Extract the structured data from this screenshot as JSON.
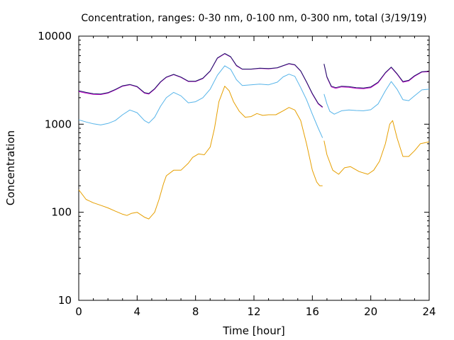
{
  "chart_data": {
    "type": "line",
    "title": "Concentration, ranges: 0-30 nm, 0-100 nm, 0-300 nm, total (3/19/19)",
    "xlabel": "Time [hour]",
    "ylabel": "Concentration",
    "xlim": [
      0,
      24
    ],
    "ylim": [
      10,
      10000
    ],
    "yscale": "log",
    "grid": false,
    "x_ticks": [
      0,
      4,
      8,
      12,
      16,
      20,
      24
    ],
    "x_tick_labels": [
      "0",
      "4",
      "8",
      "12",
      "16",
      "20",
      "24"
    ],
    "y_ticks": [
      10,
      100,
      1000,
      10000
    ],
    "y_tick_labels": [
      "10",
      "100",
      "1000",
      "10000"
    ],
    "series": [
      {
        "color": "#e69f00",
        "segments": [
          [
            [
              0,
              180
            ],
            [
              0.5,
              140
            ],
            [
              1,
              128
            ],
            [
              1.5,
              120
            ],
            [
              2,
              112
            ],
            [
              2.5,
              103
            ],
            [
              3,
              95
            ],
            [
              3.3,
              92
            ],
            [
              3.6,
              97
            ],
            [
              4,
              100
            ],
            [
              4.2,
              95
            ],
            [
              4.5,
              88
            ],
            [
              4.8,
              84
            ],
            [
              5.2,
              100
            ],
            [
              5.5,
              140
            ],
            [
              5.8,
              210
            ],
            [
              6,
              260
            ],
            [
              6.5,
              300
            ],
            [
              7,
              300
            ],
            [
              7.5,
              360
            ],
            [
              7.8,
              420
            ],
            [
              8.2,
              460
            ],
            [
              8.6,
              450
            ],
            [
              9,
              550
            ],
            [
              9.3,
              900
            ],
            [
              9.6,
              1800
            ],
            [
              10,
              2700
            ],
            [
              10.3,
              2400
            ],
            [
              10.6,
              1800
            ],
            [
              11,
              1400
            ],
            [
              11.4,
              1200
            ],
            [
              11.8,
              1220
            ],
            [
              12.2,
              1320
            ],
            [
              12.6,
              1260
            ],
            [
              13,
              1280
            ],
            [
              13.5,
              1280
            ],
            [
              14,
              1420
            ],
            [
              14.4,
              1550
            ],
            [
              14.8,
              1450
            ],
            [
              15.2,
              1100
            ],
            [
              15.6,
              600
            ],
            [
              16,
              300
            ],
            [
              16.3,
              220
            ],
            [
              16.5,
              200
            ],
            [
              16.7,
              200
            ]
          ],
          [
            [
              16.8,
              650
            ],
            [
              17,
              450
            ],
            [
              17.4,
              300
            ],
            [
              17.8,
              270
            ],
            [
              18.2,
              320
            ],
            [
              18.6,
              330
            ],
            [
              19.2,
              290
            ],
            [
              19.8,
              270
            ],
            [
              20.2,
              300
            ],
            [
              20.6,
              380
            ],
            [
              21,
              600
            ],
            [
              21.3,
              1000
            ],
            [
              21.5,
              1100
            ],
            [
              21.8,
              700
            ],
            [
              22.2,
              430
            ],
            [
              22.6,
              430
            ],
            [
              23,
              500
            ],
            [
              23.4,
              600
            ],
            [
              24,
              630
            ]
          ]
        ]
      },
      {
        "color": "#56b4e9",
        "segments": [
          [
            [
              0,
              1120
            ],
            [
              0.5,
              1060
            ],
            [
              1,
              1010
            ],
            [
              1.5,
              980
            ],
            [
              2,
              1020
            ],
            [
              2.5,
              1100
            ],
            [
              3,
              1280
            ],
            [
              3.5,
              1450
            ],
            [
              4,
              1350
            ],
            [
              4.5,
              1100
            ],
            [
              4.8,
              1030
            ],
            [
              5.2,
              1200
            ],
            [
              5.6,
              1600
            ],
            [
              6,
              2000
            ],
            [
              6.5,
              2300
            ],
            [
              7,
              2100
            ],
            [
              7.5,
              1750
            ],
            [
              8,
              1800
            ],
            [
              8.5,
              2000
            ],
            [
              9,
              2500
            ],
            [
              9.5,
              3600
            ],
            [
              10,
              4600
            ],
            [
              10.4,
              4200
            ],
            [
              10.8,
              3200
            ],
            [
              11.2,
              2750
            ],
            [
              11.8,
              2800
            ],
            [
              12.4,
              2850
            ],
            [
              13,
              2800
            ],
            [
              13.6,
              3000
            ],
            [
              14,
              3450
            ],
            [
              14.4,
              3700
            ],
            [
              14.8,
              3500
            ],
            [
              15.2,
              2600
            ],
            [
              15.6,
              1900
            ],
            [
              16,
              1300
            ],
            [
              16.4,
              900
            ],
            [
              16.7,
              700
            ]
          ],
          [
            [
              16.8,
              2200
            ],
            [
              17,
              1700
            ],
            [
              17.2,
              1400
            ],
            [
              17.5,
              1300
            ],
            [
              18,
              1420
            ],
            [
              18.5,
              1450
            ],
            [
              19,
              1430
            ],
            [
              19.5,
              1420
            ],
            [
              20,
              1460
            ],
            [
              20.5,
              1700
            ],
            [
              21,
              2400
            ],
            [
              21.4,
              3050
            ],
            [
              21.8,
              2500
            ],
            [
              22.2,
              1900
            ],
            [
              22.6,
              1850
            ],
            [
              23,
              2100
            ],
            [
              23.5,
              2450
            ],
            [
              24,
              2500
            ]
          ]
        ]
      },
      {
        "color": "#cc00cc",
        "segments": [
          [
            [
              0,
              2350
            ],
            [
              0.5,
              2250
            ],
            [
              1,
              2180
            ],
            [
              1.5,
              2170
            ],
            [
              2,
              2250
            ],
            [
              2.5,
              2450
            ],
            [
              3,
              2700
            ],
            [
              3.5,
              2800
            ],
            [
              4,
              2650
            ],
            [
              4.5,
              2250
            ],
            [
              4.8,
              2200
            ],
            [
              5.2,
              2500
            ],
            [
              5.6,
              3000
            ],
            [
              6,
              3400
            ],
            [
              6.5,
              3650
            ],
            [
              7,
              3400
            ],
            [
              7.5,
              3050
            ],
            [
              8,
              3050
            ],
            [
              8.5,
              3300
            ],
            [
              9,
              4000
            ],
            [
              9.5,
              5600
            ],
            [
              10,
              6300
            ],
            [
              10.4,
              5800
            ],
            [
              10.8,
              4600
            ],
            [
              11.2,
              4200
            ],
            [
              11.8,
              4200
            ],
            [
              12.4,
              4300
            ],
            [
              13,
              4250
            ],
            [
              13.6,
              4350
            ],
            [
              14,
              4600
            ],
            [
              14.4,
              4850
            ],
            [
              14.8,
              4700
            ],
            [
              15.2,
              4000
            ],
            [
              15.6,
              3000
            ],
            [
              16,
              2200
            ],
            [
              16.4,
              1700
            ],
            [
              16.7,
              1550
            ]
          ],
          [
            [
              16.8,
              4800
            ],
            [
              17,
              3400
            ],
            [
              17.3,
              2650
            ],
            [
              17.6,
              2550
            ],
            [
              18,
              2650
            ],
            [
              18.5,
              2620
            ],
            [
              19,
              2550
            ],
            [
              19.5,
              2530
            ],
            [
              20,
              2600
            ],
            [
              20.5,
              2950
            ],
            [
              21,
              3800
            ],
            [
              21.4,
              4400
            ],
            [
              21.8,
              3700
            ],
            [
              22.2,
              3000
            ],
            [
              22.6,
              3100
            ],
            [
              23,
              3500
            ],
            [
              23.5,
              3900
            ],
            [
              24,
              3950
            ]
          ]
        ]
      },
      {
        "color": "#1a1a66",
        "segments": [
          [
            [
              0,
              2400
            ],
            [
              0.5,
              2300
            ],
            [
              1,
              2220
            ],
            [
              1.5,
              2200
            ],
            [
              2,
              2280
            ],
            [
              2.5,
              2480
            ],
            [
              3,
              2730
            ],
            [
              3.5,
              2830
            ],
            [
              4,
              2680
            ],
            [
              4.5,
              2280
            ],
            [
              4.8,
              2230
            ],
            [
              5.2,
              2530
            ],
            [
              5.6,
              3030
            ],
            [
              6,
              3430
            ],
            [
              6.5,
              3680
            ],
            [
              7,
              3430
            ],
            [
              7.5,
              3080
            ],
            [
              8,
              3080
            ],
            [
              8.5,
              3330
            ],
            [
              9,
              4030
            ],
            [
              9.5,
              5650
            ],
            [
              10,
              6350
            ],
            [
              10.4,
              5850
            ],
            [
              10.8,
              4650
            ],
            [
              11.2,
              4230
            ],
            [
              11.8,
              4230
            ],
            [
              12.4,
              4330
            ],
            [
              13,
              4280
            ],
            [
              13.6,
              4380
            ],
            [
              14,
              4630
            ],
            [
              14.4,
              4880
            ],
            [
              14.8,
              4730
            ],
            [
              15.2,
              4030
            ],
            [
              15.6,
              3030
            ],
            [
              16,
              2230
            ],
            [
              16.4,
              1720
            ],
            [
              16.7,
              1570
            ]
          ],
          [
            [
              16.8,
              4850
            ],
            [
              17,
              3450
            ],
            [
              17.3,
              2700
            ],
            [
              17.6,
              2600
            ],
            [
              18,
              2700
            ],
            [
              18.5,
              2670
            ],
            [
              19,
              2600
            ],
            [
              19.5,
              2580
            ],
            [
              20,
              2650
            ],
            [
              20.5,
              3000
            ],
            [
              21,
              3850
            ],
            [
              21.4,
              4450
            ],
            [
              21.8,
              3750
            ],
            [
              22.2,
              3050
            ],
            [
              22.6,
              3150
            ],
            [
              23,
              3550
            ],
            [
              23.5,
              3950
            ],
            [
              24,
              4000
            ]
          ]
        ]
      }
    ]
  }
}
